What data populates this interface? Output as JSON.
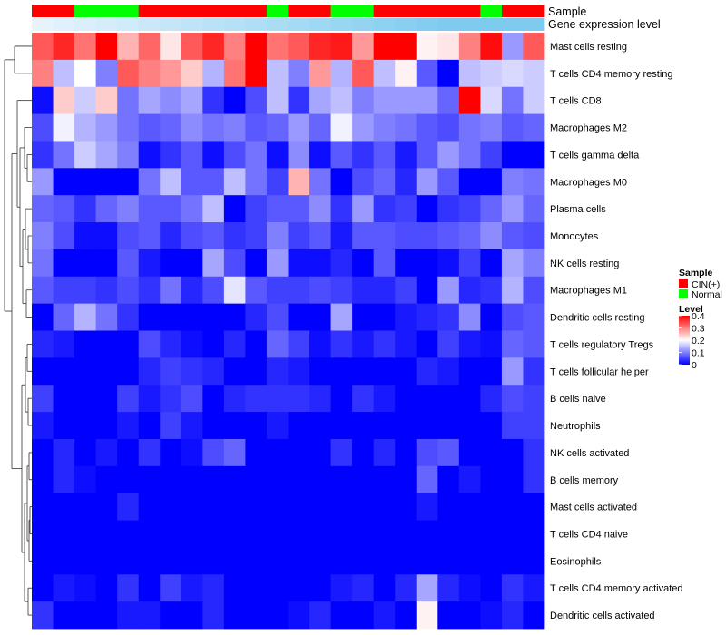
{
  "chart_data": {
    "type": "heatmap",
    "title": "",
    "annotation_rows": [
      {
        "label": "Sample",
        "type": "categorical"
      },
      {
        "label": "Gene expression level",
        "type": "continuous"
      }
    ],
    "legend": {
      "sample_title": "Sample",
      "sample_entries": [
        {
          "label": "CIN(+)",
          "color": "#ff0000"
        },
        {
          "label": "Normal",
          "color": "#00ff00"
        }
      ],
      "level_title": "Level",
      "level_ticks": [
        "0.4",
        "0.3",
        "0.2",
        "0.1",
        "0"
      ],
      "level_min": 0,
      "level_max": 0.4,
      "level_colors": [
        "#0000ff",
        "#ffffff",
        "#ff0000"
      ]
    },
    "sample_groups": [
      "CIN(+)",
      "CIN(+)",
      "Normal",
      "Normal",
      "Normal",
      "CIN(+)",
      "CIN(+)",
      "CIN(+)",
      "CIN(+)",
      "CIN(+)",
      "CIN(+)",
      "Normal",
      "CIN(+)",
      "CIN(+)",
      "Normal",
      "Normal",
      "CIN(+)",
      "CIN(+)",
      "CIN(+)",
      "CIN(+)",
      "CIN(+)",
      "Normal",
      "CIN(+)",
      "CIN(+)"
    ],
    "gene_expression_level": [
      0.05,
      0.1,
      0.15,
      0.2,
      0.25,
      0.3,
      0.35,
      0.4,
      0.45,
      0.5,
      0.55,
      0.6,
      0.65,
      0.7,
      0.75,
      0.8,
      0.85,
      0.9,
      0.95,
      1.0,
      1.0,
      1.0,
      1.0,
      1.0
    ],
    "rows": [
      "Mast cells resting",
      "T cells CD4 memory resting",
      "T cells CD8",
      "Macrophages M2",
      "T cells gamma delta",
      "Macrophages M0",
      "Plasma cells",
      "Monocytes",
      "NK cells resting",
      "Macrophages M1",
      "Dendritic cells resting",
      "T cells regulatory  Tregs",
      "T cells follicular helper",
      "B cells naive",
      "Neutrophils",
      "NK cells activated",
      "B cells memory",
      "Mast cells activated",
      "T cells CD4 naive",
      "Eosinophils",
      "T cells CD4 memory activated",
      "Dendritic cells activated"
    ],
    "values": [
      [
        0.33,
        0.37,
        0.31,
        0.4,
        0.26,
        0.32,
        0.22,
        0.33,
        0.37,
        0.3,
        0.4,
        0.31,
        0.33,
        0.37,
        0.38,
        0.28,
        0.4,
        0.4,
        0.21,
        0.22,
        0.3,
        0.39,
        0.12,
        0.33
      ],
      [
        0.3,
        0.15,
        0.2,
        0.1,
        0.33,
        0.3,
        0.28,
        0.24,
        0.14,
        0.31,
        0.4,
        0.15,
        0.1,
        0.28,
        0.14,
        0.33,
        0.15,
        0.21,
        0.07,
        0.0,
        0.15,
        0.16,
        0.17,
        0.16
      ],
      [
        0.01,
        0.24,
        0.16,
        0.24,
        0.09,
        0.13,
        0.11,
        0.13,
        0.04,
        0.0,
        0.06,
        0.15,
        0.04,
        0.13,
        0.15,
        0.1,
        0.12,
        0.12,
        0.12,
        0.08,
        0.4,
        0.17,
        0.09,
        0.16
      ],
      [
        0.06,
        0.19,
        0.14,
        0.12,
        0.09,
        0.07,
        0.08,
        0.11,
        0.09,
        0.1,
        0.07,
        0.08,
        0.12,
        0.08,
        0.19,
        0.12,
        0.1,
        0.09,
        0.07,
        0.06,
        0.09,
        0.1,
        0.07,
        0.08
      ],
      [
        0.04,
        0.09,
        0.16,
        0.13,
        0.1,
        0.01,
        0.04,
        0.07,
        0.01,
        0.06,
        0.09,
        0.01,
        0.11,
        0.01,
        0.07,
        0.04,
        0.07,
        0.02,
        0.07,
        0.12,
        0.09,
        0.05,
        0.0,
        0.0
      ],
      [
        0.12,
        0.0,
        0.0,
        0.0,
        0.0,
        0.09,
        0.15,
        0.07,
        0.07,
        0.15,
        0.09,
        0.05,
        0.26,
        0.09,
        0.0,
        0.06,
        0.08,
        0.03,
        0.12,
        0.07,
        0.0,
        0.0,
        0.1,
        0.09
      ],
      [
        0.08,
        0.07,
        0.04,
        0.08,
        0.1,
        0.07,
        0.07,
        0.09,
        0.15,
        0.0,
        0.05,
        0.07,
        0.07,
        0.11,
        0.04,
        0.12,
        0.04,
        0.05,
        0.0,
        0.04,
        0.05,
        0.08,
        0.12,
        0.08
      ],
      [
        0.1,
        0.06,
        0.01,
        0.01,
        0.06,
        0.07,
        0.03,
        0.06,
        0.07,
        0.04,
        0.05,
        0.1,
        0.05,
        0.07,
        0.02,
        0.07,
        0.07,
        0.06,
        0.06,
        0.07,
        0.08,
        0.11,
        0.07,
        0.06
      ],
      [
        0.09,
        0.0,
        0.0,
        0.0,
        0.07,
        0.02,
        0.0,
        0.0,
        0.13,
        0.06,
        0.0,
        0.12,
        0.01,
        0.01,
        0.03,
        0.0,
        0.07,
        0.0,
        0.0,
        0.01,
        0.05,
        0.0,
        0.13,
        0.1
      ],
      [
        0.07,
        0.05,
        0.05,
        0.04,
        0.06,
        0.04,
        0.09,
        0.03,
        0.06,
        0.18,
        0.07,
        0.05,
        0.05,
        0.06,
        0.05,
        0.03,
        0.03,
        0.05,
        0.0,
        0.12,
        0.03,
        0.04,
        0.14,
        0.06
      ],
      [
        0.0,
        0.08,
        0.14,
        0.09,
        0.04,
        0.0,
        0.0,
        0.0,
        0.0,
        0.0,
        0.03,
        0.06,
        0.0,
        0.0,
        0.13,
        0.0,
        0.0,
        0.02,
        0.03,
        0.04,
        0.11,
        0.0,
        0.06,
        0.07
      ],
      [
        0.03,
        0.02,
        0.0,
        0.0,
        0.0,
        0.06,
        0.03,
        0.01,
        0.0,
        0.03,
        0.0,
        0.08,
        0.05,
        0.01,
        0.04,
        0.02,
        0.04,
        0.02,
        0.0,
        0.05,
        0.02,
        0.01,
        0.08,
        0.07
      ],
      [
        0.0,
        0.0,
        0.0,
        0.0,
        0.0,
        0.03,
        0.05,
        0.04,
        0.03,
        0.0,
        0.0,
        0.03,
        0.02,
        0.0,
        0.0,
        0.0,
        0.0,
        0.0,
        0.03,
        0.02,
        0.0,
        0.0,
        0.12,
        0.04
      ],
      [
        0.05,
        0.0,
        0.0,
        0.0,
        0.05,
        0.02,
        0.04,
        0.06,
        0.0,
        0.03,
        0.04,
        0.04,
        0.04,
        0.03,
        0.0,
        0.04,
        0.02,
        0.0,
        0.0,
        0.0,
        0.0,
        0.03,
        0.06,
        0.05
      ],
      [
        0.02,
        0.0,
        0.0,
        0.0,
        0.02,
        0.0,
        0.05,
        0.02,
        0.0,
        0.0,
        0.0,
        0.02,
        0.0,
        0.0,
        0.0,
        0.0,
        0.0,
        0.0,
        0.0,
        0.0,
        0.0,
        0.0,
        0.05,
        0.05
      ],
      [
        0.0,
        0.03,
        0.0,
        0.02,
        0.0,
        0.04,
        0.0,
        0.01,
        0.06,
        0.08,
        0.0,
        0.0,
        0.0,
        0.0,
        0.04,
        0.0,
        0.03,
        0.0,
        0.06,
        0.07,
        0.0,
        0.0,
        0.0,
        0.04
      ],
      [
        0.0,
        0.03,
        0.01,
        0.0,
        0.0,
        0.0,
        0.0,
        0.0,
        0.0,
        0.0,
        0.0,
        0.0,
        0.0,
        0.0,
        0.0,
        0.0,
        0.0,
        0.0,
        0.08,
        0.0,
        0.02,
        0.0,
        0.0,
        0.04
      ],
      [
        0.0,
        0.0,
        0.0,
        0.0,
        0.03,
        0.0,
        0.0,
        0.0,
        0.0,
        0.0,
        0.0,
        0.0,
        0.0,
        0.0,
        0.0,
        0.0,
        0.0,
        0.0,
        0.02,
        0.0,
        0.0,
        0.0,
        0.0,
        0.0
      ],
      [
        0.0,
        0.0,
        0.0,
        0.0,
        0.0,
        0.0,
        0.0,
        0.0,
        0.0,
        0.0,
        0.0,
        0.0,
        0.0,
        0.0,
        0.0,
        0.0,
        0.0,
        0.0,
        0.0,
        0.0,
        0.0,
        0.0,
        0.0,
        0.0
      ],
      [
        0.0,
        0.0,
        0.0,
        0.0,
        0.0,
        0.0,
        0.0,
        0.0,
        0.0,
        0.0,
        0.0,
        0.0,
        0.0,
        0.0,
        0.0,
        0.0,
        0.0,
        0.0,
        0.0,
        0.0,
        0.0,
        0.0,
        0.0,
        0.0
      ],
      [
        0.0,
        0.02,
        0.01,
        0.0,
        0.04,
        0.0,
        0.05,
        0.02,
        0.03,
        0.0,
        0.0,
        0.0,
        0.0,
        0.0,
        0.02,
        0.03,
        0.0,
        0.03,
        0.13,
        0.03,
        0.01,
        0.0,
        0.04,
        0.02
      ],
      [
        0.04,
        0.0,
        0.0,
        0.0,
        0.02,
        0.02,
        0.0,
        0.0,
        0.03,
        0.0,
        0.0,
        0.0,
        0.01,
        0.03,
        0.0,
        0.0,
        0.02,
        0.0,
        0.21,
        0.0,
        0.0,
        0.01,
        0.03,
        0.0
      ]
    ]
  }
}
